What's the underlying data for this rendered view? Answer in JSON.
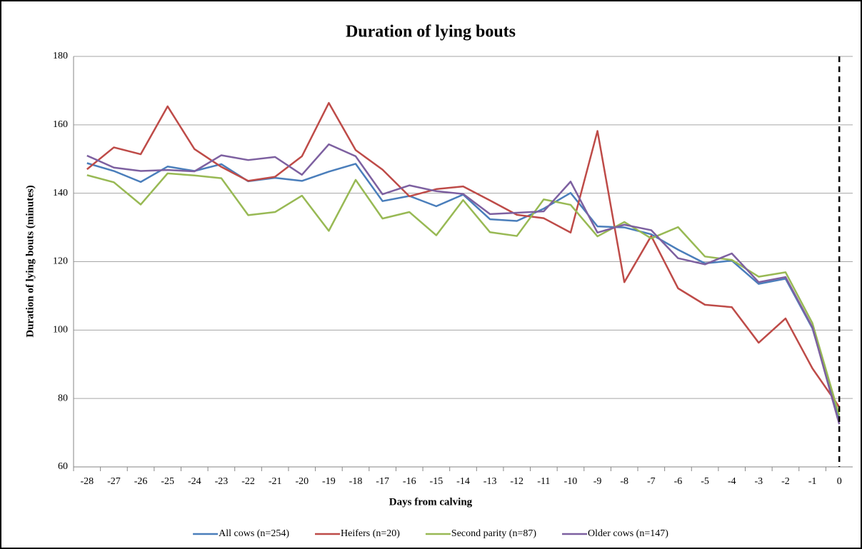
{
  "chart_data": {
    "type": "line",
    "title": "Duration of lying bouts",
    "x_label": "Days from calving",
    "y_label": "Duration of lying bouts (minutes)",
    "x": [
      -28,
      -27,
      -26,
      -25,
      -24,
      -23,
      -22,
      -21,
      -20,
      -19,
      -18,
      -17,
      -16,
      -15,
      -14,
      -13,
      -12,
      -11,
      -10,
      -9,
      -8,
      -7,
      -6,
      -5,
      -4,
      -3,
      -2,
      -1,
      0
    ],
    "xlim": [
      -28.5,
      0.5
    ],
    "xticks": [
      -28,
      -27,
      -26,
      -25,
      -24,
      -23,
      -22,
      -21,
      -20,
      -19,
      -18,
      -17,
      -16,
      -15,
      -14,
      -13,
      -12,
      -11,
      -10,
      -9,
      -8,
      -7,
      -6,
      -5,
      -4,
      -3,
      -2,
      -1,
      0
    ],
    "ylim": [
      60,
      180
    ],
    "yticks": [
      60,
      80,
      100,
      120,
      140,
      160,
      180
    ],
    "grid": true,
    "legend": "bottom",
    "reference_line": {
      "x": 0,
      "style": "dashed",
      "color": "#000000"
    },
    "series": [
      {
        "name": "All cows (n=254)",
        "color": "#4a7ebb",
        "values": [
          148.8,
          146.5,
          143.3,
          147.8,
          146.5,
          148.5,
          143.5,
          144.5,
          143.6,
          146.3,
          148.6,
          137.7,
          139.2,
          136.2,
          139.6,
          132.4,
          131.9,
          135.5,
          140.1,
          130.3,
          130.0,
          128.0,
          123.5,
          119.5,
          120.3,
          113.5,
          115.0,
          100.5,
          74
        ]
      },
      {
        "name": "Heifers (n=20)",
        "color": "#be4b48",
        "values": [
          147,
          153.4,
          151.4,
          165.4,
          152.9,
          147.7,
          143.6,
          144.8,
          150.8,
          166.4,
          152.6,
          146.9,
          139.1,
          141.2,
          142.0,
          137.9,
          133.7,
          132.7,
          128.5,
          158.2,
          114.0,
          127.5,
          112.2,
          107.4,
          106.7,
          96.3,
          103.4,
          88.8,
          77.5
        ]
      },
      {
        "name": "Second parity (n=87)",
        "color": "#98b954",
        "values": [
          145.3,
          143.2,
          136.7,
          145.8,
          145.2,
          144.4,
          133.6,
          134.5,
          139.3,
          129.0,
          143.9,
          132.6,
          134.5,
          127.7,
          138.0,
          128.6,
          127.5,
          138.2,
          136.6,
          127.4,
          131.6,
          126.8,
          130.1,
          121.5,
          120.5,
          115.6,
          116.9,
          102.0,
          75
        ]
      },
      {
        "name": "Older cows (n=147)",
        "color": "#7d60a0",
        "values": [
          151.0,
          147.5,
          146.5,
          146.8,
          146.4,
          151.1,
          149.7,
          150.6,
          145.4,
          154.3,
          150.8,
          139.7,
          142.3,
          140.6,
          139.8,
          133.9,
          134.3,
          134.7,
          143.4,
          128.5,
          130.8,
          129.2,
          121.0,
          119.2,
          122.4,
          114.0,
          115.5,
          100.8,
          72.5
        ]
      }
    ]
  }
}
